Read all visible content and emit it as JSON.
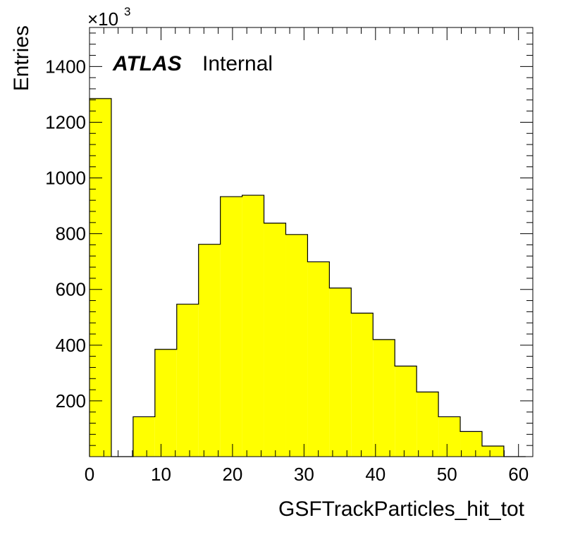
{
  "chart_data": {
    "type": "bar",
    "title": "",
    "xlabel": "GSFTrackParticles_hit_tot",
    "ylabel": "Entries",
    "y_multiplier_label": "×10",
    "y_multiplier_exponent": "3",
    "xlim": [
      0,
      62
    ],
    "ylim": [
      0,
      1540
    ],
    "grid": false,
    "fill_color": "#ffff00",
    "edge_color": "#000000",
    "bin_edges": [
      0,
      3.05,
      6.1,
      9.15,
      12.2,
      15.25,
      18.3,
      21.35,
      24.4,
      27.45,
      30.5,
      33.55,
      36.6,
      39.65,
      42.7,
      45.75,
      48.8,
      51.85,
      54.9,
      57.95,
      61
    ],
    "values": [
      1285,
      0,
      143,
      385,
      547,
      762,
      933,
      938,
      838,
      797,
      699,
      605,
      515,
      420,
      325,
      232,
      143,
      90,
      38,
      0
    ],
    "x_ticks": [
      0,
      10,
      20,
      30,
      40,
      50,
      60
    ],
    "y_ticks": [
      200,
      400,
      600,
      800,
      1000,
      1200,
      1400
    ],
    "annotations": [
      {
        "bold_text": "ATLAS",
        "text": "Internal"
      }
    ]
  }
}
